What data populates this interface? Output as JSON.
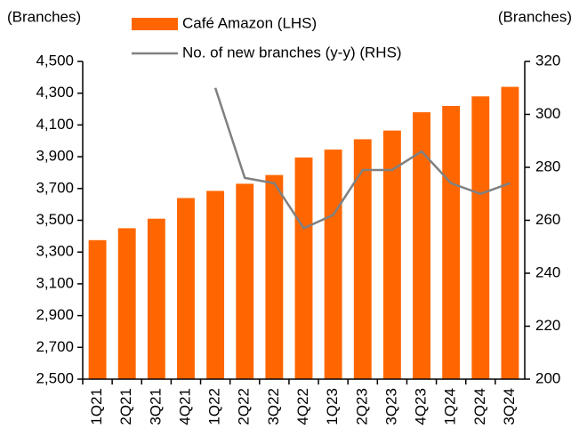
{
  "chart_data": {
    "type": "combo",
    "y_label": "(Branches)",
    "y2_label": "(Branches)",
    "categories": [
      "1Q21",
      "2Q21",
      "3Q21",
      "4Q21",
      "1Q22",
      "2Q22",
      "3Q22",
      "4Q22",
      "1Q23",
      "2Q23",
      "3Q23",
      "4Q23",
      "1Q24",
      "2Q24",
      "3Q24"
    ],
    "series": [
      {
        "name": "Café Amazon (LHS)",
        "type": "bar",
        "color": "#ff6600",
        "axis": "y",
        "values": [
          3375,
          3450,
          3510,
          3640,
          3685,
          3730,
          3785,
          3895,
          3945,
          4010,
          4065,
          4180,
          4220,
          4280,
          4340
        ]
      },
      {
        "name": "No. of new branches (y-y) (RHS)",
        "type": "line",
        "color": "#808080",
        "axis": "y2",
        "values": [
          null,
          null,
          null,
          null,
          310,
          276,
          274,
          257,
          262,
          279,
          279,
          286,
          274,
          270,
          274
        ]
      }
    ],
    "ylim": [
      2500,
      4500
    ],
    "yticks": [
      {
        "value": 2500,
        "label": "2,500"
      },
      {
        "value": 2700,
        "label": "2,700"
      },
      {
        "value": 2900,
        "label": "2,900"
      },
      {
        "value": 3100,
        "label": "3,100"
      },
      {
        "value": 3300,
        "label": "3,300"
      },
      {
        "value": 3500,
        "label": "3,500"
      },
      {
        "value": 3700,
        "label": "3,700"
      },
      {
        "value": 3900,
        "label": "3,900"
      },
      {
        "value": 4100,
        "label": "4,100"
      },
      {
        "value": 4300,
        "label": "4,300"
      },
      {
        "value": 4500,
        "label": "4,500"
      }
    ],
    "y2lim": [
      200,
      320
    ],
    "y2ticks": [
      200,
      220,
      240,
      260,
      280,
      300,
      320
    ],
    "grid": false
  }
}
